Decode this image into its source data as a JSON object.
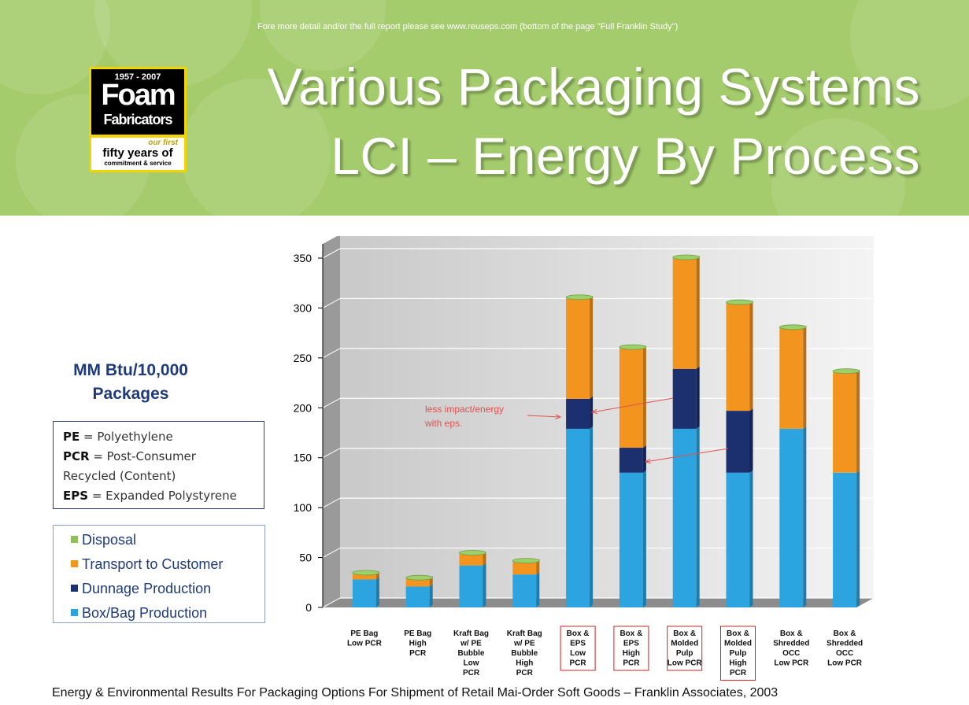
{
  "header": {
    "note": "Fore more detail and/or the full report please see www.reuseps.com (bottom of the page \"Full Franklin Study\")",
    "title_line1": "Various Packaging Systems",
    "title_line2": "LCI – Energy By Process"
  },
  "logo": {
    "years": "1957 - 2007",
    "foam": "Foam",
    "fabricators": "Fabricators",
    "our_first": "our first",
    "fifty_years": "fifty years of",
    "commitment": "commitment & service"
  },
  "units_line1": "MM Btu/10,000",
  "units_line2": "Packages",
  "definitions": [
    {
      "abbr": "PE",
      "text": " = Polyethylene"
    },
    {
      "abbr": "PCR",
      "text": " = Post-Consumer"
    },
    {
      "abbr": "",
      "text": "Recycled (Content)"
    },
    {
      "abbr": "EPS",
      "text": " = Expanded Polystyrene"
    }
  ],
  "legend": [
    {
      "label": "Disposal",
      "color": "#8fbf5a"
    },
    {
      "label": "Transport to Customer",
      "color": "#f2941e"
    },
    {
      "label": "Dunnage Production",
      "color": "#1c2f6f"
    },
    {
      "label": "Box/Bag Production",
      "color": "#2ba4e0"
    }
  ],
  "annotation": [
    "less impact/energy",
    "with eps."
  ],
  "chart_data": {
    "type": "bar",
    "stacked": true,
    "ylim": [
      0,
      350
    ],
    "yticks": [
      0,
      50,
      100,
      150,
      200,
      250,
      300,
      350
    ],
    "grid": true,
    "categories": [
      [
        "PE Bag",
        "Low PCR"
      ],
      [
        "PE Bag",
        "High",
        "PCR"
      ],
      [
        "Kraft Bag",
        "w/ PE",
        "Bubble",
        "Low",
        "PCR"
      ],
      [
        "Kraft Bag",
        "w/ PE",
        "Bubble",
        "High",
        "PCR"
      ],
      [
        "Box &",
        "EPS",
        "Low",
        "PCR"
      ],
      [
        "Box &",
        "EPS",
        "High",
        "PCR"
      ],
      [
        "Box &",
        "Molded",
        "Pulp",
        "Low PCR"
      ],
      [
        "Box &",
        "Molded",
        "Pulp",
        "High",
        "PCR"
      ],
      [
        "Box &",
        "Shredded",
        "OCC",
        "Low PCR"
      ],
      [
        "Box &",
        "Shredded",
        "OCC",
        "Low PCR"
      ]
    ],
    "boxed_categories": [
      4,
      5,
      6,
      7
    ],
    "series": [
      {
        "name": "Box/Bag Production",
        "color": "#2ba4e0",
        "values": [
          28,
          21,
          42,
          33,
          179,
          135,
          179,
          135,
          179,
          135
        ]
      },
      {
        "name": "Dunnage Production",
        "color": "#1c2f6f",
        "values": [
          0,
          0,
          0,
          0,
          30,
          25,
          60,
          62,
          0,
          0
        ]
      },
      {
        "name": "Transport to Customer",
        "color": "#f2941e",
        "values": [
          5,
          7,
          11,
          12,
          100,
          99,
          110,
          107,
          100,
          100
        ]
      },
      {
        "name": "Disposal",
        "color": "#8fbf5a",
        "values": [
          1,
          1,
          1,
          1,
          1,
          1,
          1,
          1,
          1,
          1
        ]
      }
    ]
  },
  "footer": "Energy & Environmental Results For Packaging Options For Shipment of Retail Mai-Order Soft Goods – Franklin Associates, 2003"
}
